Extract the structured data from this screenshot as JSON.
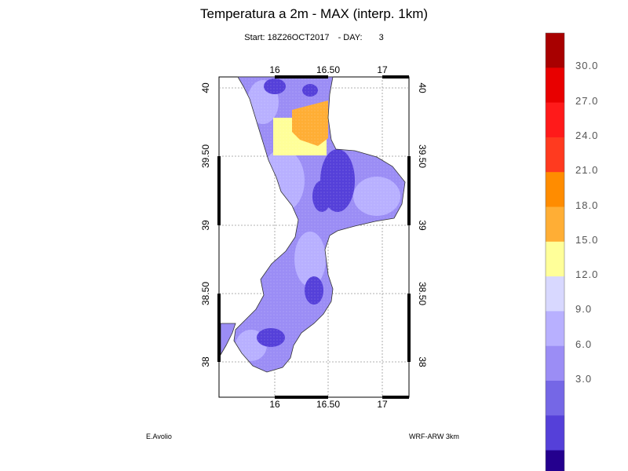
{
  "title": "Temperatura a 2m - MAX (interp. 1km)",
  "subtitle": {
    "start": "Start: 18Z26OCT2017",
    "day_label": "- DAY:",
    "day_value": "3"
  },
  "credits": {
    "author": "E.Avolio",
    "model": "WRF-ARW 3km"
  },
  "map": {
    "lon_ticks": [
      "16",
      "16.50",
      "17"
    ],
    "lat_ticks": [
      "40",
      "39.50",
      "39",
      "38.50",
      "38"
    ],
    "lon_range": [
      15.5,
      17.25
    ],
    "lat_range": [
      37.8,
      40.1
    ]
  },
  "colorbar": {
    "colors": [
      "#a80000",
      "#e80000",
      "#ff1a1a",
      "#ff3a1f",
      "#ff8c00",
      "#ffae35",
      "#ffff99",
      "#d8d8ff",
      "#b8b0ff",
      "#9b8df5",
      "#7567e6",
      "#5540d9",
      "#24008e"
    ],
    "labels": [
      "30.0",
      "27.0",
      "24.0",
      "21.0",
      "18.0",
      "15.0",
      "12.0",
      "9.0",
      "6.0",
      "3.0"
    ]
  },
  "colors": {
    "land_base": "#9b8df5",
    "land_light": "#b8b0ff",
    "land_dark": "#5540d9",
    "warm_yellow": "#ffff99",
    "warm_orange": "#ffae35"
  }
}
